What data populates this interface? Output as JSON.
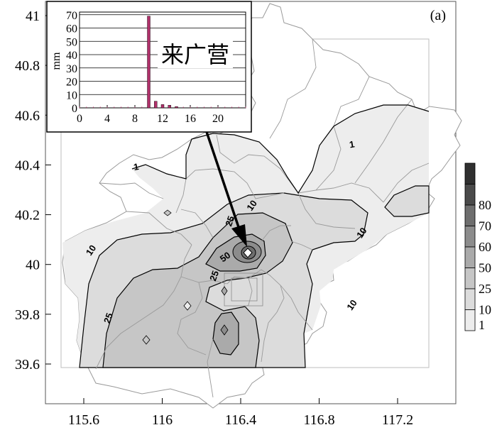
{
  "panel_label": "(a)",
  "x_axis": {
    "ticks": [
      {
        "value": 115.6,
        "label": "115.6"
      },
      {
        "value": 116.0,
        "label": "116"
      },
      {
        "value": 116.4,
        "label": "116.4"
      },
      {
        "value": 116.8,
        "label": "116.8"
      },
      {
        "value": 117.2,
        "label": "117.2"
      }
    ],
    "range": [
      115.4,
      117.3
    ]
  },
  "y_axis": {
    "ticks": [
      {
        "value": 39.6,
        "label": "39.6"
      },
      {
        "value": 39.8,
        "label": "39.8"
      },
      {
        "value": 40.0,
        "label": "40"
      },
      {
        "value": 40.2,
        "label": "40.2"
      },
      {
        "value": 40.4,
        "label": "40.4"
      },
      {
        "value": 40.6,
        "label": "40.6"
      },
      {
        "value": 40.8,
        "label": "40.8"
      },
      {
        "value": 41.0,
        "label": "41"
      }
    ],
    "range": [
      39.45,
      41.05
    ]
  },
  "colorbar": {
    "levels": [
      {
        "label": "1",
        "color": "#ededed"
      },
      {
        "label": "10",
        "color": "#dcdcdc"
      },
      {
        "label": "25",
        "color": "#c6c6c6"
      },
      {
        "label": "50",
        "color": "#aaaaaa"
      },
      {
        "label": "60",
        "color": "#8c8c8c"
      },
      {
        "label": "70",
        "color": "#6e6e6e"
      },
      {
        "label": "80",
        "color": "#4a4a4a"
      }
    ],
    "top_color": "#303030"
  },
  "contour_labels": [
    {
      "text": "1",
      "lon": 115.87,
      "lat": 40.38
    },
    {
      "text": "1",
      "lon": 116.97,
      "lat": 40.47
    },
    {
      "text": "10",
      "lon": 116.47,
      "lat": 40.23
    },
    {
      "text": "10",
      "lon": 115.65,
      "lat": 40.05
    },
    {
      "text": "10",
      "lon": 117.03,
      "lat": 40.12
    },
    {
      "text": "10",
      "lon": 116.98,
      "lat": 39.83
    },
    {
      "text": "25",
      "lon": 116.36,
      "lat": 40.17
    },
    {
      "text": "25",
      "lon": 116.28,
      "lat": 39.95
    },
    {
      "text": "25",
      "lon": 115.74,
      "lat": 39.78
    },
    {
      "text": "50",
      "lon": 116.33,
      "lat": 40.02
    }
  ],
  "station": {
    "name": "来广营",
    "lon": 116.43,
    "lat": 40.03
  },
  "inset": {
    "title": "来广营",
    "ylabel": "mm",
    "x_ticks": [
      0,
      4,
      8,
      12,
      16,
      20
    ],
    "x_range": [
      0,
      24
    ],
    "y_ticks": [
      0,
      10,
      20,
      30,
      40,
      50,
      60,
      70
    ],
    "y_range": [
      0,
      72
    ],
    "bar_color": "#b0306a",
    "bars": [
      {
        "hour": 10,
        "value": 69
      },
      {
        "hour": 11,
        "value": 5
      },
      {
        "hour": 12,
        "value": 2.5
      },
      {
        "hour": 13,
        "value": 2
      },
      {
        "hour": 14,
        "value": 1
      }
    ]
  }
}
